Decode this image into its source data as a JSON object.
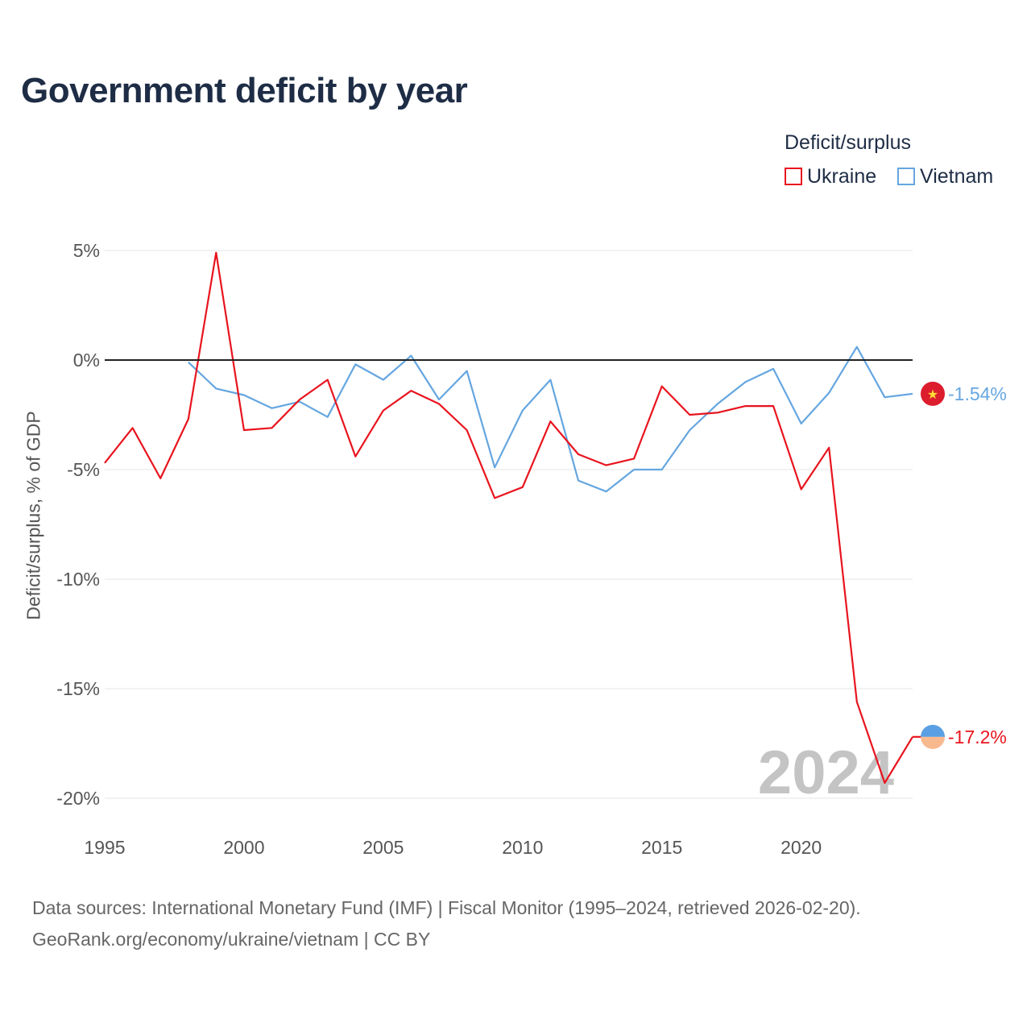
{
  "title": "Government deficit by year",
  "legend": {
    "title": "Deficit/surplus",
    "items": [
      {
        "label": "Ukraine",
        "color": "#e8141e"
      },
      {
        "label": "Vietnam",
        "color": "#65a6e0"
      }
    ]
  },
  "watermark_year": "2024",
  "sources": {
    "line1": "Data sources: International Monetary Fund (IMF) | Fiscal Monitor (1995–2024, retrieved 2026-02-20).",
    "line2": "GeoRank.org/economy/ukraine/vietnam | CC BY"
  },
  "chart_data": {
    "type": "line",
    "title": "Government deficit by year",
    "xlabel": "",
    "ylabel": "Deficit/surplus, % of GDP",
    "xlim": [
      1995,
      2024
    ],
    "ylim": [
      -20,
      5
    ],
    "xticks": [
      1995,
      2000,
      2005,
      2010,
      2015,
      2020
    ],
    "yticks": [
      5,
      0,
      -5,
      -10,
      -15,
      -20
    ],
    "ytick_labels": [
      "5%",
      "0%",
      "-5%",
      "-10%",
      "-15%",
      "-20%"
    ],
    "zero_line": true,
    "grid": true,
    "series": [
      {
        "name": "Ukraine",
        "color": "#e8141e",
        "x": [
          1995,
          1996,
          1997,
          1998,
          1999,
          2000,
          2001,
          2002,
          2003,
          2004,
          2005,
          2006,
          2007,
          2008,
          2009,
          2010,
          2011,
          2012,
          2013,
          2014,
          2015,
          2016,
          2017,
          2018,
          2019,
          2020,
          2021,
          2022,
          2023,
          2024
        ],
        "values": [
          -4.7,
          -3.1,
          -5.4,
          -2.7,
          4.9,
          -3.2,
          -3.1,
          -1.8,
          -0.9,
          -4.4,
          -2.3,
          -1.4,
          -2.0,
          -3.2,
          -6.3,
          -5.8,
          -2.8,
          -4.3,
          -4.8,
          -4.5,
          -1.2,
          -2.5,
          -2.4,
          -2.1,
          -2.1,
          -5.9,
          -4.0,
          -15.6,
          -19.3,
          -17.2
        ],
        "end_label": "-17.2%",
        "marker_icon": "ukraine-flag-icon"
      },
      {
        "name": "Vietnam",
        "color": "#65a6e0",
        "x": [
          1998,
          1999,
          2000,
          2001,
          2002,
          2003,
          2004,
          2005,
          2006,
          2007,
          2008,
          2009,
          2010,
          2011,
          2012,
          2013,
          2014,
          2015,
          2016,
          2017,
          2018,
          2019,
          2020,
          2021,
          2022,
          2023,
          2024
        ],
        "values": [
          -0.1,
          -1.3,
          -1.6,
          -2.2,
          -1.9,
          -2.6,
          -0.2,
          -0.9,
          0.2,
          -1.8,
          -0.5,
          -4.9,
          -2.3,
          -0.9,
          -5.5,
          -6.0,
          -5.0,
          -5.0,
          -3.2,
          -2.0,
          -1.0,
          -0.4,
          -2.9,
          -1.5,
          0.6,
          -1.7,
          -1.54
        ],
        "end_label": "-1.54%",
        "marker_icon": "vietnam-flag-icon"
      }
    ]
  }
}
